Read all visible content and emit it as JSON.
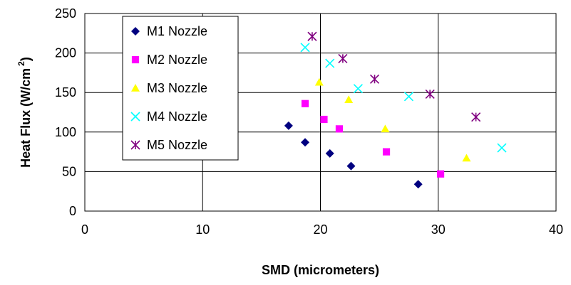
{
  "chart_data": {
    "type": "scatter",
    "xlabel": "SMD (micrometers)",
    "ylabel": "Heat Flux (W/cm",
    "ylabel_superscript": "2",
    "ylabel_close": ")",
    "xlim": [
      0,
      40
    ],
    "ylim": [
      0,
      250
    ],
    "x_ticks": [
      0,
      10,
      20,
      30,
      40
    ],
    "y_ticks": [
      0,
      50,
      100,
      150,
      200,
      250
    ],
    "grid": true,
    "legend_position": "top-left",
    "series": [
      {
        "name": "M1 Nozzle",
        "marker": "diamond",
        "color": "#000080",
        "points": [
          [
            17.3,
            108
          ],
          [
            18.7,
            87
          ],
          [
            20.8,
            73
          ],
          [
            22.6,
            57
          ],
          [
            28.3,
            34
          ]
        ]
      },
      {
        "name": "M2 Nozzle",
        "marker": "square",
        "color": "#FF00FF",
        "points": [
          [
            18.7,
            136
          ],
          [
            20.3,
            116
          ],
          [
            21.6,
            104
          ],
          [
            25.6,
            75
          ],
          [
            30.2,
            47
          ]
        ]
      },
      {
        "name": "M3 Nozzle",
        "marker": "triangle",
        "color": "#FFFF00",
        "points": [
          [
            19.9,
            163
          ],
          [
            22.4,
            141
          ],
          [
            25.5,
            104
          ],
          [
            32.4,
            67
          ]
        ]
      },
      {
        "name": "M4 Nozzle",
        "marker": "x",
        "color": "#00FFFF",
        "points": [
          [
            18.7,
            207
          ],
          [
            20.8,
            187
          ],
          [
            23.2,
            155
          ],
          [
            27.5,
            145
          ],
          [
            35.4,
            80
          ]
        ]
      },
      {
        "name": "M5 Nozzle",
        "marker": "asterisk",
        "color": "#800080",
        "points": [
          [
            19.3,
            221
          ],
          [
            21.9,
            193
          ],
          [
            24.6,
            167
          ],
          [
            29.3,
            148
          ],
          [
            33.2,
            119
          ]
        ]
      }
    ]
  }
}
